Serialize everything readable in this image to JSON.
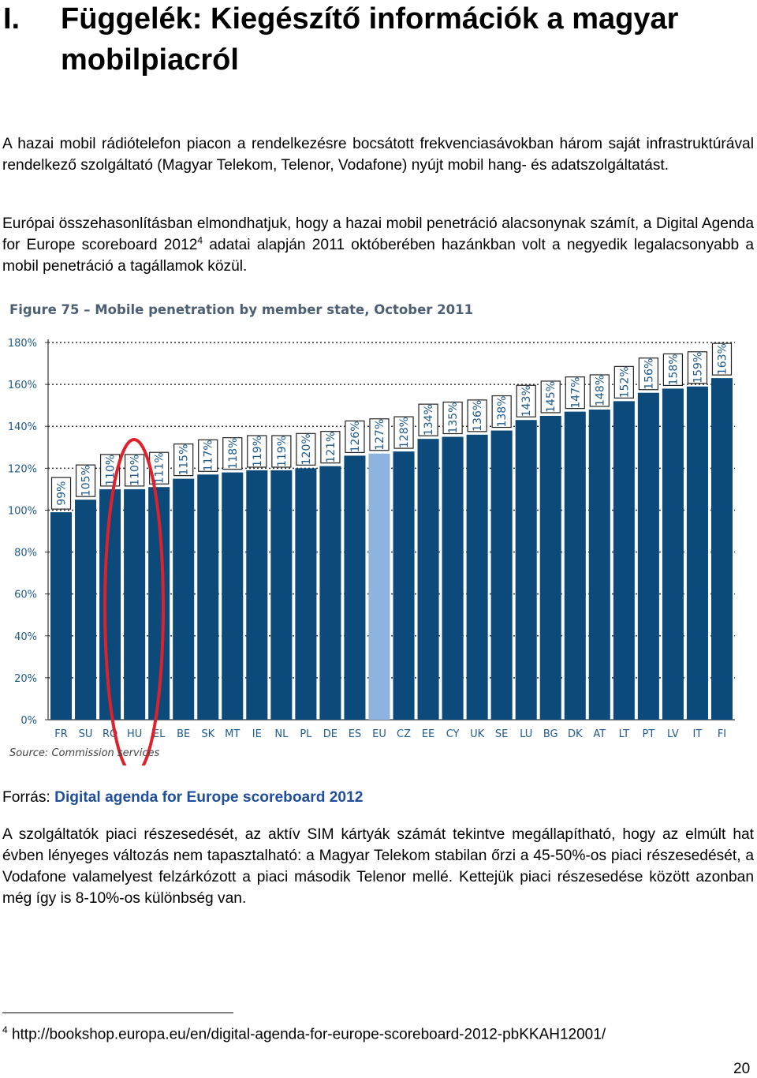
{
  "heading": {
    "number": "I.",
    "title": "Függelék: Kiegészítő információk a magyar mobilpiacról"
  },
  "paragraph1": "A hazai mobil rádiótelefon piacon a rendelkezésre bocsátott frekvenciasávokban három saját infrastruktúrával rendelkező szolgáltató (Magyar Telekom, Telenor, Vodafone) nyújt mobil hang- és adatszolgáltatást.",
  "paragraph2": {
    "before": "Európai összehasonlításban elmondhatjuk, hogy a hazai mobil penetráció alacsonynak számít, a Digital Agenda for Europe scoreboard 2012",
    "footnote_ref": "4",
    "after": " adatai alapján 2011 októberében hazánkban volt a negyedik legalacsonyabb a mobil penetráció a tagállamok közül."
  },
  "source": {
    "label": "Forrás: ",
    "link": "Digital agenda for Europe scoreboard 2012"
  },
  "paragraph3": "A szolgáltatók piaci részesedését, az aktív SIM kártyák számát tekintve megállapítható, hogy az elmúlt hat évben lényeges változás nem tapasztalható: a Magyar Telekom stabilan őrzi a 45-50%-os piaci részesedését, a Vodafone valamelyest felzárkózott a piaci második Telenor mellé. Kettejük piaci részesedése között azonban még így is 8-10%-os különbség van.",
  "footnote": {
    "number": "4",
    "text": " http://bookshop.europa.eu/en/digital-agenda-for-europe-scoreboard-2012-pbKKAH12001/"
  },
  "page_number": "20",
  "chart_data": {
    "type": "bar",
    "title": "Figure 75 – Mobile penetration by member state, October 2011",
    "source": "Source: Commission services",
    "categories": [
      "FR",
      "SU",
      "RO",
      "HU",
      "EL",
      "BE",
      "SK",
      "MT",
      "IE",
      "NL",
      "PL",
      "DE",
      "ES",
      "EU",
      "CZ",
      "EE",
      "CY",
      "UK",
      "SE",
      "LU",
      "BG",
      "DK",
      "AT",
      "LT",
      "PT",
      "LV",
      "IT",
      "FI"
    ],
    "values": [
      99,
      105,
      110,
      110,
      111,
      115,
      117,
      118,
      119,
      119,
      120,
      121,
      126,
      127,
      128,
      134,
      135,
      136,
      138,
      143,
      145,
      147,
      148,
      152,
      156,
      158,
      159,
      163
    ],
    "value_labels": [
      "99%",
      "105%",
      "110%",
      "110%",
      "111%",
      "115%",
      "117%",
      "118%",
      "119%",
      "119%",
      "120%",
      "121%",
      "126%",
      "127%",
      "128%",
      "134%",
      "135%",
      "136%",
      "138%",
      "143%",
      "145%",
      "147%",
      "148%",
      "152%",
      "156%",
      "158%",
      "159%",
      "163%"
    ],
    "y_ticks": [
      "0%",
      "20%",
      "40%",
      "60%",
      "80%",
      "100%",
      "120%",
      "140%",
      "160%",
      "180%"
    ],
    "ylim": [
      0,
      180
    ],
    "highlight_category": "EU",
    "circled_category": "HU",
    "colors": {
      "bar": "#0b4a7a",
      "highlight": "#8db3de",
      "circle": "#e0202a",
      "title": "#4d5f74",
      "axis_text": "#1f5a8c"
    }
  }
}
